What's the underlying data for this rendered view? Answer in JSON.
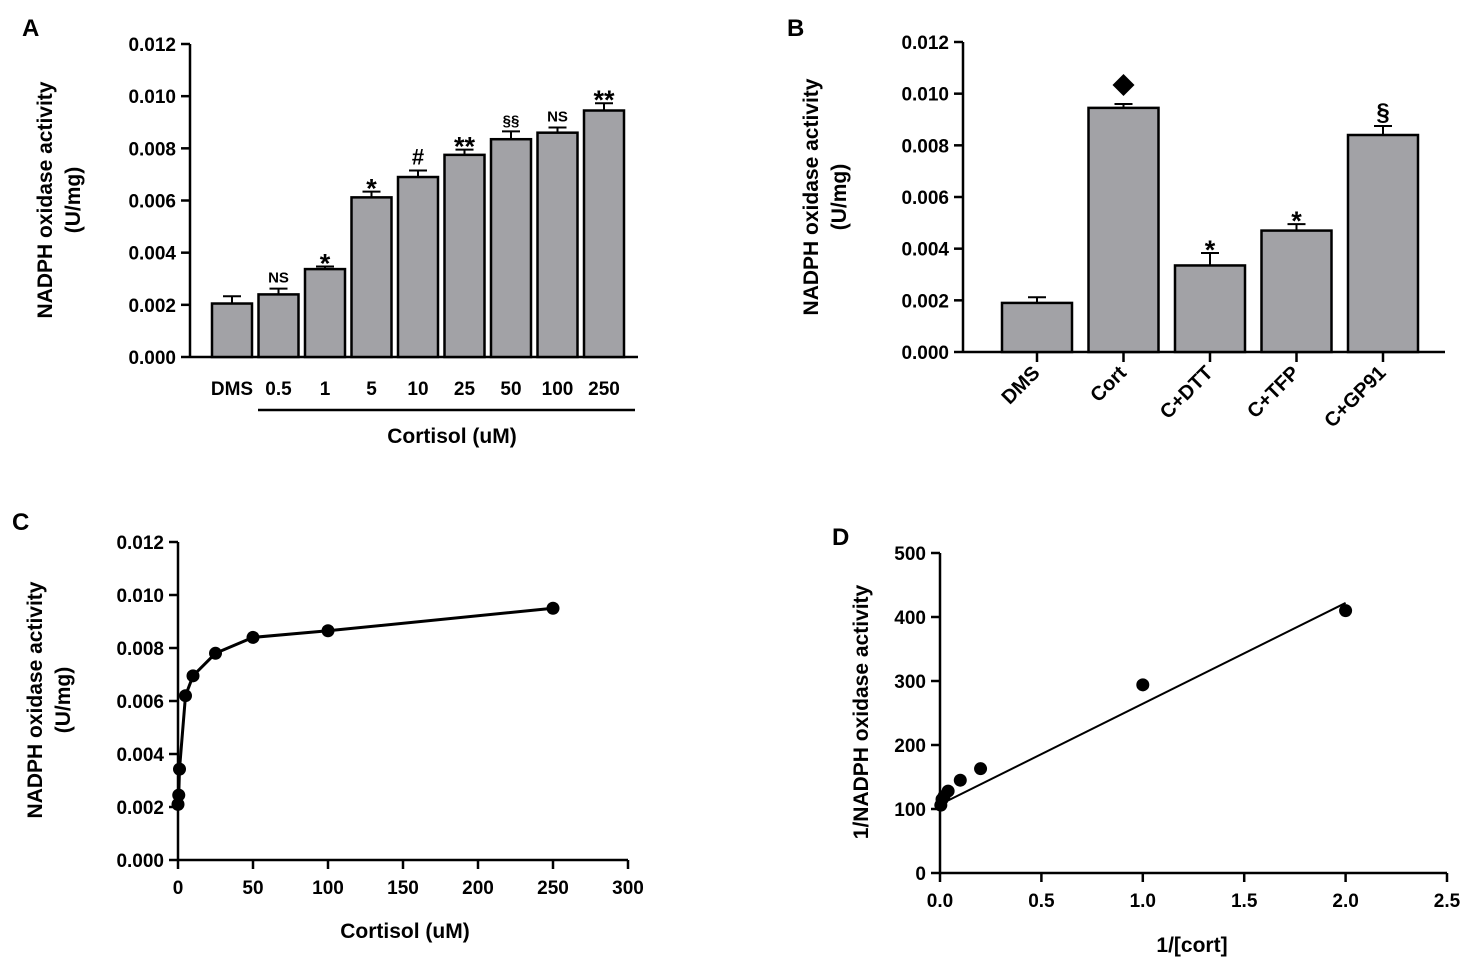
{
  "chart_data": [
    {
      "panel": "A",
      "type": "bar",
      "ylabel": [
        "NADPH oxidase activity",
        "(U/mg)"
      ],
      "xlabel": "Cortisol (uM)",
      "ylim": [
        0,
        0.012
      ],
      "yticks": [
        "0.000",
        "0.002",
        "0.004",
        "0.006",
        "0.008",
        "0.010",
        "0.012"
      ],
      "categories": [
        "DMS",
        "0.5",
        "1",
        "5",
        "10",
        "25",
        "50",
        "100",
        "250"
      ],
      "values": [
        0.00205,
        0.0024,
        0.00337,
        0.00612,
        0.0069,
        0.00775,
        0.00835,
        0.0086,
        0.00945
      ],
      "errors": [
        0.00028,
        0.00022,
        0.0001,
        0.00022,
        0.00025,
        0.0002,
        0.0003,
        0.0002,
        0.00028
      ],
      "annotations": [
        "",
        "NS",
        "*",
        "*",
        "#",
        "**",
        "§§",
        "NS",
        "**"
      ]
    },
    {
      "panel": "B",
      "type": "bar",
      "ylabel": [
        "NADPH oxidase activity",
        "(U/mg)"
      ],
      "xlabel": "",
      "ylim": [
        0,
        0.012
      ],
      "yticks": [
        "0.000",
        "0.002",
        "0.004",
        "0.006",
        "0.008",
        "0.010",
        "0.012"
      ],
      "categories": [
        "DMS",
        "Cort",
        "C+DTT",
        "C+TFP",
        "C+GP91"
      ],
      "values": [
        0.0019,
        0.00945,
        0.00335,
        0.0047,
        0.0084
      ],
      "errors": [
        0.00022,
        0.00015,
        0.00048,
        0.00025,
        0.00035
      ],
      "annotations": [
        "",
        "◆",
        "*",
        "*",
        "§"
      ]
    },
    {
      "panel": "C",
      "type": "line",
      "ylabel": [
        "NADPH oxidase activity",
        "(U/mg)"
      ],
      "xlabel": "Cortisol (uM)",
      "xlim": [
        0,
        300
      ],
      "ylim": [
        0,
        0.012
      ],
      "xticks": [
        "0",
        "50",
        "100",
        "150",
        "200",
        "250",
        "300"
      ],
      "yticks": [
        "0.000",
        "0.002",
        "0.004",
        "0.006",
        "0.008",
        "0.010",
        "0.012"
      ],
      "x": [
        0,
        0.5,
        1,
        5,
        10,
        25,
        50,
        100,
        250
      ],
      "y": [
        0.0021,
        0.00245,
        0.00343,
        0.0062,
        0.00695,
        0.0078,
        0.0084,
        0.00865,
        0.0095
      ]
    },
    {
      "panel": "D",
      "type": "scatter",
      "ylabel": [
        "1/NADPH oxidase activity"
      ],
      "xlabel": "1/[cort]",
      "xlim": [
        0,
        2.5
      ],
      "ylim": [
        0,
        500
      ],
      "xticks": [
        "0.0",
        "0.5",
        "1.0",
        "1.5",
        "2.0",
        "2.5"
      ],
      "yticks": [
        "0",
        "100",
        "200",
        "300",
        "400",
        "500"
      ],
      "x": [
        0.004,
        0.01,
        0.02,
        0.04,
        0.1,
        0.2,
        1.0,
        2.0
      ],
      "y": [
        106,
        115,
        120,
        128,
        145,
        163,
        294,
        410
      ],
      "fit_line": {
        "x": [
          0,
          2.0
        ],
        "y": [
          107,
          422
        ]
      }
    }
  ]
}
